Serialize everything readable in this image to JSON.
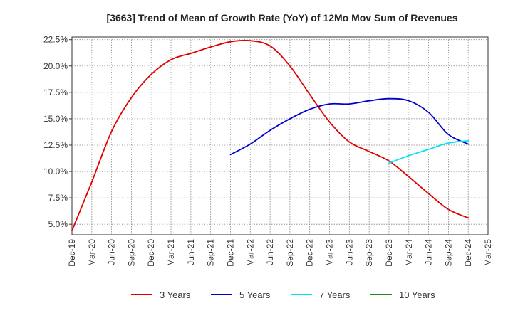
{
  "chart_data": {
    "type": "line",
    "title": "[3663]  Trend of Mean of Growth Rate (YoY) of 12Mo Mov Sum of Revenues",
    "xlabel": "",
    "ylabel": "",
    "ylim": [
      4.0,
      22.75
    ],
    "yticks": [
      5.0,
      7.5,
      10.0,
      12.5,
      15.0,
      17.5,
      20.0,
      22.5
    ],
    "ytick_labels": [
      "5.0%",
      "7.5%",
      "10.0%",
      "12.5%",
      "15.0%",
      "17.5%",
      "20.0%",
      "22.5%"
    ],
    "x_tick_labels": [
      "Dec-19",
      "Mar-20",
      "Jun-20",
      "Sep-20",
      "Dec-20",
      "Mar-21",
      "Jun-21",
      "Sep-21",
      "Dec-21",
      "Mar-22",
      "Jun-22",
      "Sep-22",
      "Dec-22",
      "Mar-23",
      "Jun-23",
      "Sep-23",
      "Dec-23",
      "Mar-24",
      "Jun-24",
      "Sep-24",
      "Dec-24",
      "Mar-25"
    ],
    "grid": true,
    "legend_position": "bottom",
    "series": [
      {
        "name": "3 Years",
        "color": "#e00000",
        "points": [
          [
            0,
            4.4
          ],
          [
            1,
            9.0
          ],
          [
            2,
            13.8
          ],
          [
            3,
            17.0
          ],
          [
            4,
            19.2
          ],
          [
            5,
            20.6
          ],
          [
            6,
            21.2
          ],
          [
            7,
            21.8
          ],
          [
            8,
            22.3
          ],
          [
            9,
            22.4
          ],
          [
            10,
            21.9
          ],
          [
            11,
            20.0
          ],
          [
            12,
            17.3
          ],
          [
            13,
            14.7
          ],
          [
            14,
            12.8
          ],
          [
            15,
            11.9
          ],
          [
            16,
            11.0
          ],
          [
            17,
            9.5
          ],
          [
            18,
            7.9
          ],
          [
            19,
            6.4
          ],
          [
            20,
            5.6
          ]
        ]
      },
      {
        "name": "5 Years",
        "color": "#0000cc",
        "points": [
          [
            8,
            11.6
          ],
          [
            9,
            12.6
          ],
          [
            10,
            13.9
          ],
          [
            11,
            15.0
          ],
          [
            12,
            15.9
          ],
          [
            13,
            16.4
          ],
          [
            14,
            16.4
          ],
          [
            15,
            16.7
          ],
          [
            16,
            16.9
          ],
          [
            17,
            16.7
          ],
          [
            18,
            15.6
          ],
          [
            19,
            13.5
          ],
          [
            20,
            12.6
          ]
        ]
      },
      {
        "name": "7 Years",
        "color": "#00e5ee",
        "points": [
          [
            16,
            10.8
          ],
          [
            17,
            11.5
          ],
          [
            18,
            12.1
          ],
          [
            19,
            12.7
          ],
          [
            20,
            12.9
          ]
        ]
      },
      {
        "name": "10 Years",
        "color": "#228b22",
        "points": []
      }
    ]
  }
}
